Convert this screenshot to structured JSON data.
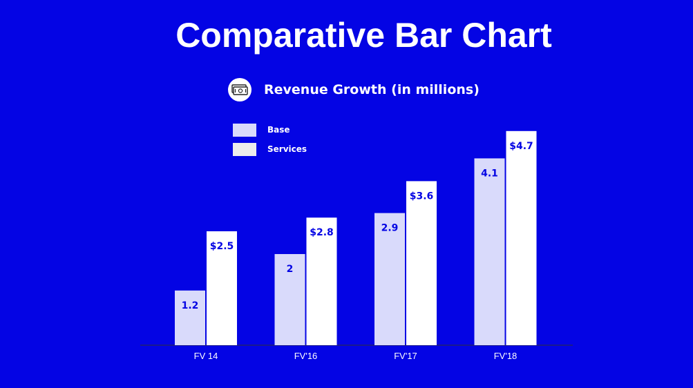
{
  "colors": {
    "background": "#0404e4",
    "base": "#d9dafb",
    "services": "#ffffff",
    "label": "#0404e4",
    "axis": "#1a1a8c",
    "tick": "#ffffff"
  },
  "title": "Comparative Bar Chart",
  "subtitle": "Revenue Growth (in millions)",
  "subtitle_icon": "money-bills-icon",
  "legend": [
    {
      "label": "Base",
      "color": "#d9dafb"
    },
    {
      "label": "Services",
      "color": "#ececec"
    }
  ],
  "chart_data": {
    "type": "bar",
    "title": "Comparative Bar Chart",
    "subtitle": "Revenue Growth (in millions)",
    "categories": [
      "FV 14",
      "FV'16",
      "FV'17",
      "FV'18"
    ],
    "series": [
      {
        "name": "Base",
        "values": [
          1.2,
          2,
          2.9,
          4.1
        ],
        "labels": [
          "1.2",
          "2",
          "2.9",
          "4.1"
        ]
      },
      {
        "name": "Services",
        "values": [
          2.5,
          2.8,
          3.6,
          4.7
        ],
        "labels": [
          "$2.5",
          "$2.8",
          "$3.6",
          "$4.7"
        ]
      }
    ],
    "xlabel": "",
    "ylabel": "",
    "ylim": [
      0,
      5
    ],
    "grid": false,
    "legend_position": "top-left"
  }
}
